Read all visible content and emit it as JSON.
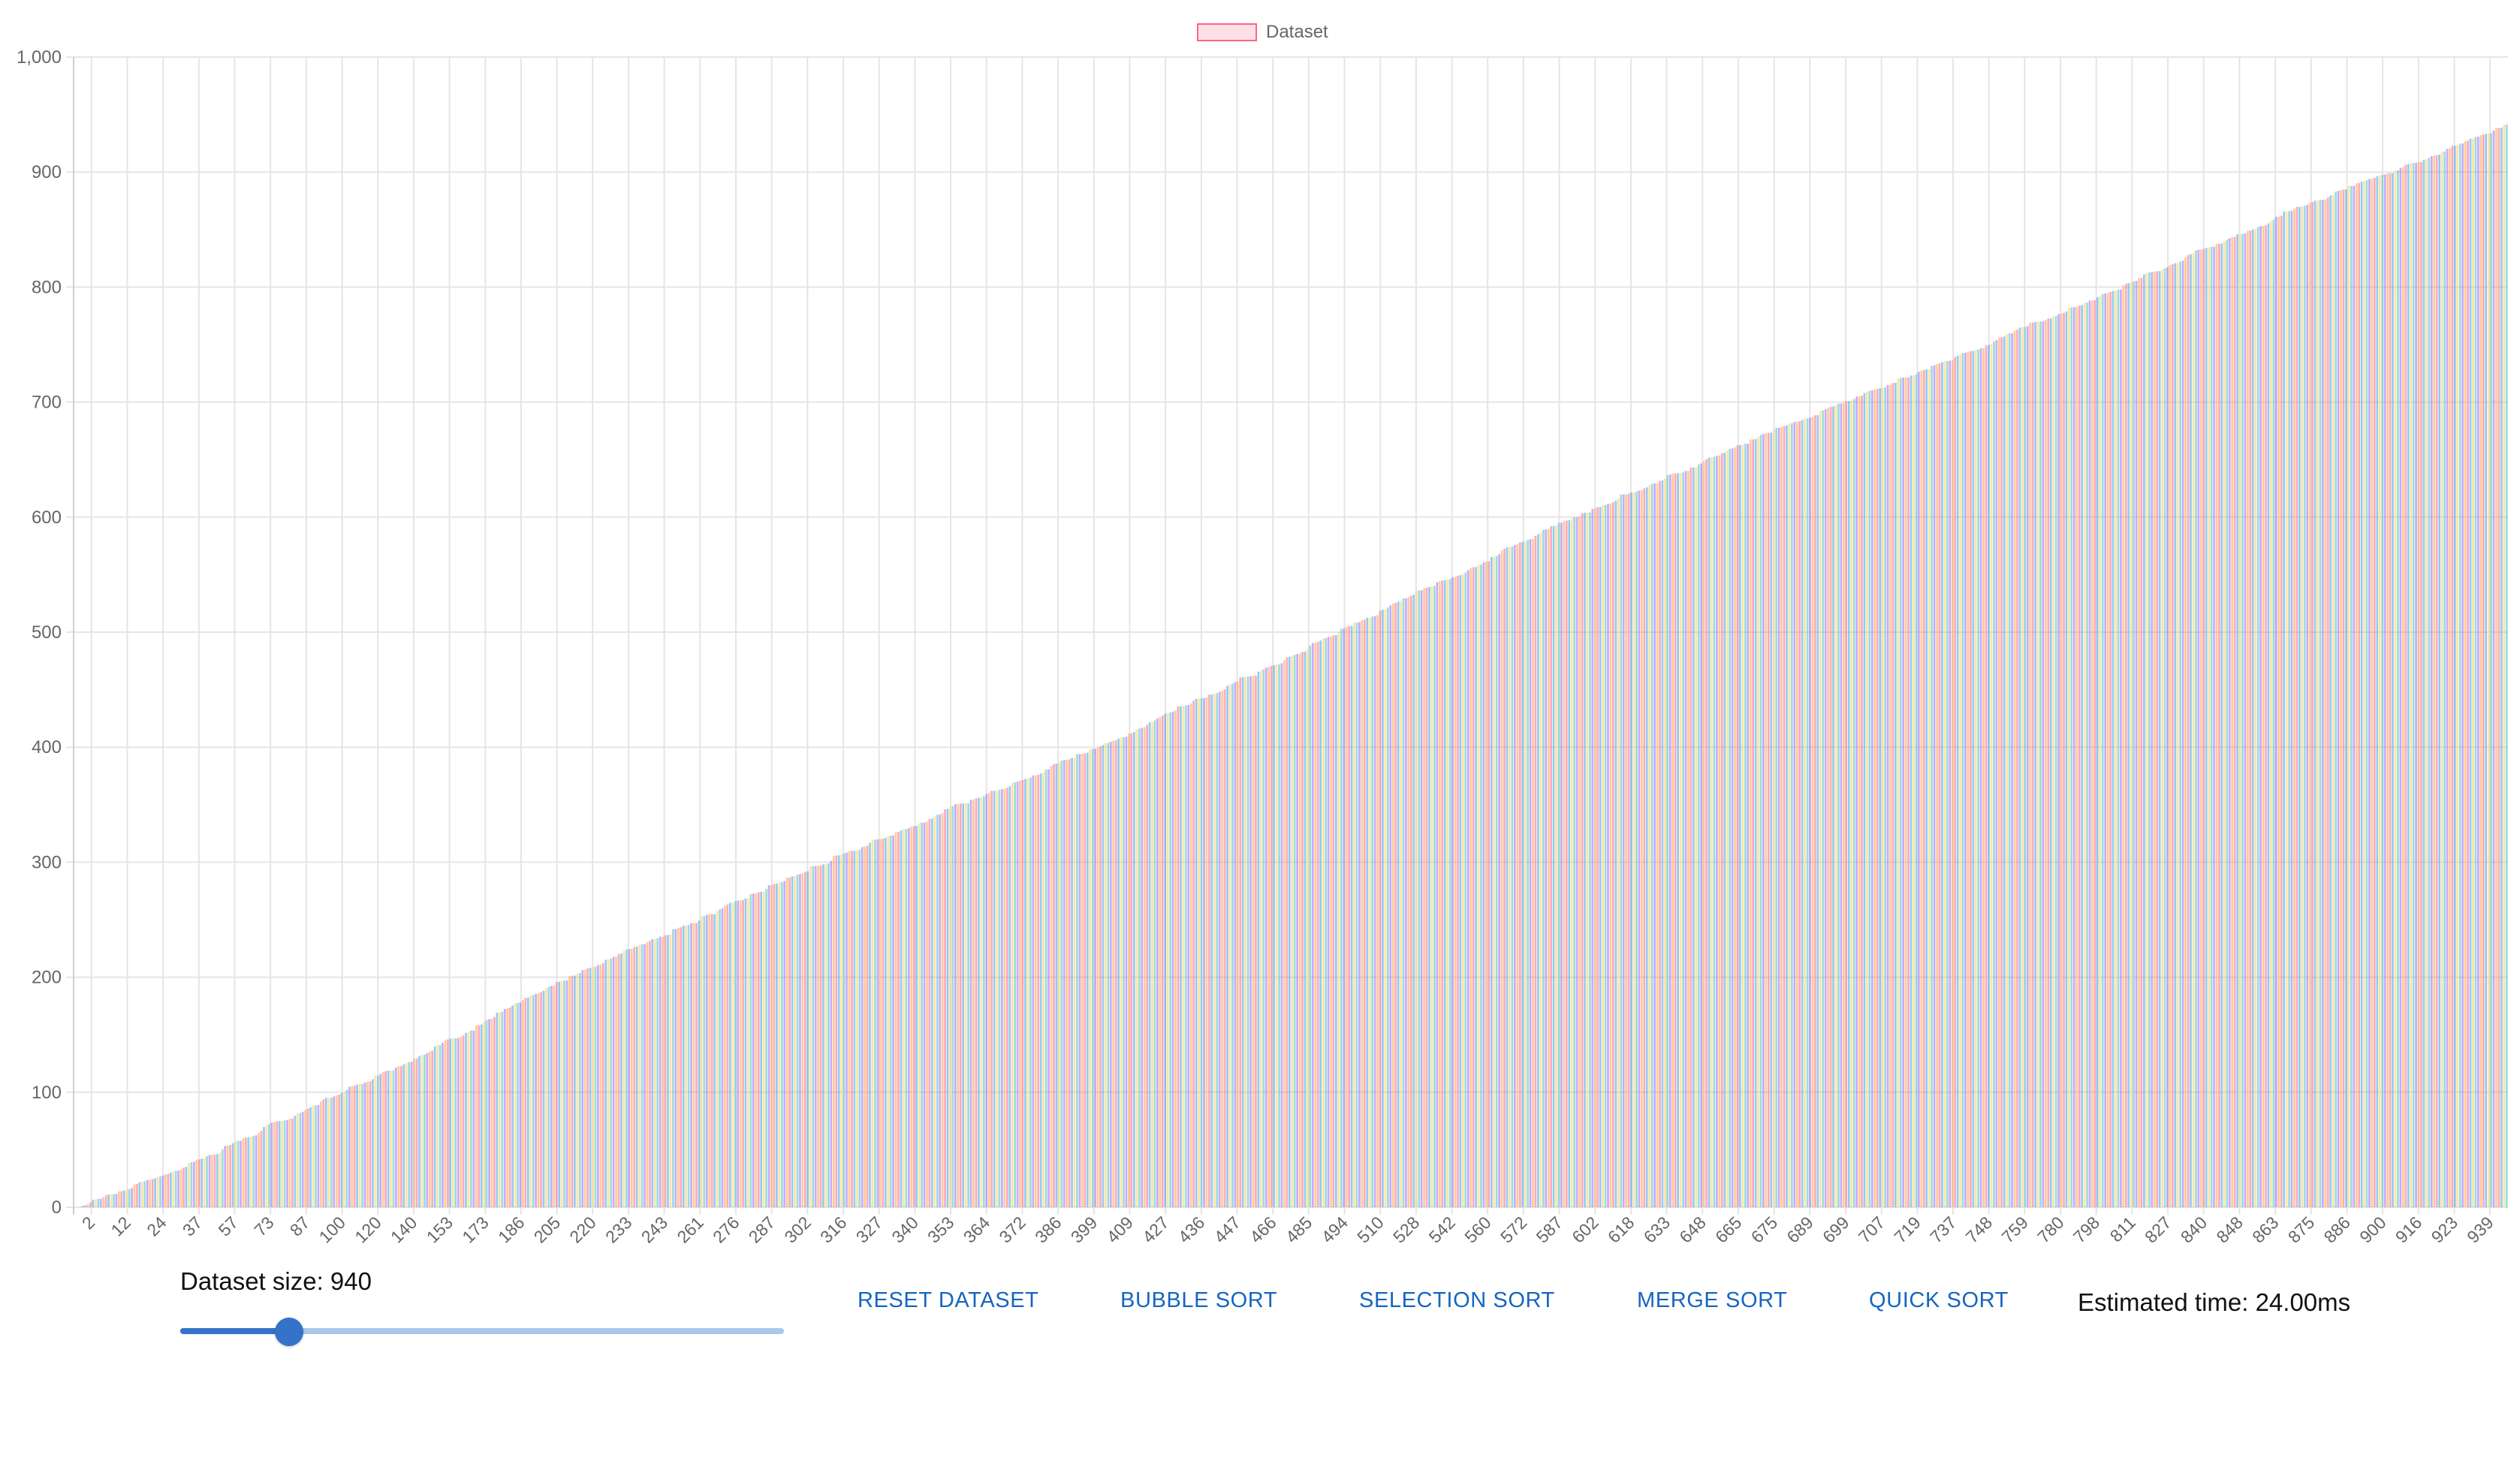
{
  "legend": {
    "label": "Dataset",
    "fill": "#FF6384",
    "border": "#FF6384"
  },
  "controls": {
    "size_label": "Dataset size: 940",
    "slider_level": 0.18,
    "buttons": [
      {
        "label": "RESET DATASET"
      },
      {
        "label": "BUBBLE SORT"
      },
      {
        "label": "SELECTION SORT"
      },
      {
        "label": "MERGE SORT"
      },
      {
        "label": "QUICK SORT"
      }
    ],
    "estimated_time": "Estimated time: 24.00ms"
  },
  "colors": {
    "accent": "#1565C0",
    "slider_fill": "#3473C9",
    "slider_track": "#A9C8EC",
    "bar_palette": [
      "#FF6384",
      "#36A2EB",
      "#FFCE56",
      "#4BC0C0",
      "#9966FF",
      "#FF9F40"
    ],
    "grid": "#E5E5E5",
    "tick_text": "#666666"
  },
  "chart_data": {
    "type": "bar",
    "bar_count": 940,
    "ylim": [
      0,
      1000
    ],
    "y_ticks": [
      "0",
      "100",
      "200",
      "300",
      "400",
      "500",
      "600",
      "700",
      "800",
      "900",
      "1,000"
    ],
    "x_tick_labels": [
      "2",
      "12",
      "24",
      "37",
      "57",
      "73",
      "87",
      "100",
      "120",
      "140",
      "153",
      "173",
      "186",
      "205",
      "220",
      "233",
      "243",
      "261",
      "276",
      "287",
      "302",
      "316",
      "327",
      "340",
      "353",
      "364",
      "372",
      "386",
      "399",
      "409",
      "427",
      "436",
      "447",
      "466",
      "485",
      "494",
      "510",
      "528",
      "542",
      "560",
      "572",
      "587",
      "602",
      "618",
      "633",
      "648",
      "665",
      "675",
      "689",
      "699",
      "707",
      "719",
      "737",
      "748",
      "759",
      "780",
      "798",
      "811",
      "827",
      "840",
      "848",
      "863",
      "875",
      "886",
      "900",
      "916",
      "923",
      "939"
    ],
    "legend": "Dataset",
    "grid": true,
    "legend_position": "top-center",
    "series": [
      {
        "name": "Dataset",
        "note_values": "sorted ascending; control points (index, value)",
        "profile": [
          [
            0,
            0
          ],
          [
            40,
            33
          ],
          [
            80,
            75
          ],
          [
            140,
            140
          ],
          [
            200,
            210
          ],
          [
            300,
            310
          ],
          [
            400,
            405
          ],
          [
            470,
            480
          ],
          [
            560,
            580
          ],
          [
            640,
            660
          ],
          [
            700,
            715
          ],
          [
            780,
            790
          ],
          [
            860,
            870
          ],
          [
            939,
            940
          ]
        ]
      }
    ]
  }
}
